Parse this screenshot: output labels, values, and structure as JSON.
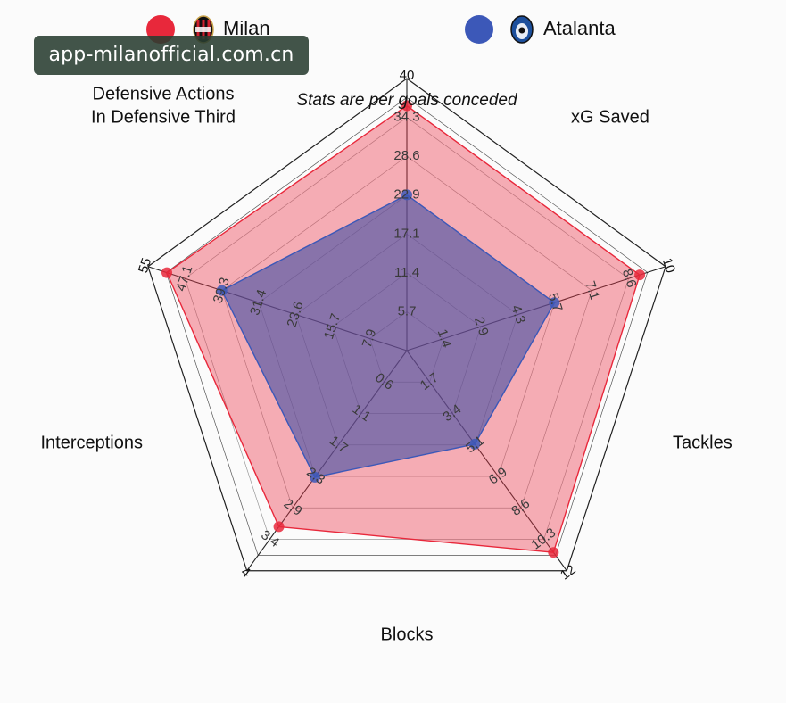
{
  "chart_data": {
    "type": "radar",
    "subtitle": "Stats are per goals conceded",
    "axes": [
      {
        "label": "Defensive Actions In Defensive Third",
        "label_lines": [
          "Defensive Actions",
          "In Defensive Third"
        ],
        "max": 40,
        "ticks": [
          "5.7",
          "11.4",
          "17.1",
          "22.9",
          "28.6",
          "34.3"
        ]
      },
      {
        "label": "xG Saved",
        "label_lines": [
          "xG Saved"
        ],
        "max": 10,
        "ticks": [
          "1.4",
          "2.9",
          "4.3",
          "5.7",
          "7.1",
          "8.6"
        ]
      },
      {
        "label": "Tackles",
        "label_lines": [
          "Tackles"
        ],
        "max": 12,
        "ticks": [
          "1.7",
          "3.4",
          "5.1",
          "6.9",
          "8.6",
          "10.3"
        ]
      },
      {
        "label": "Blocks",
        "label_lines": [
          "Blocks"
        ],
        "max": 4,
        "ticks": [
          "0.6",
          "1.1",
          "1.7",
          "2.3",
          "2.9",
          "3.4"
        ]
      },
      {
        "label": "Interceptions",
        "label_lines": [
          "Interceptions"
        ],
        "max": 55,
        "ticks": [
          "7.9",
          "15.7",
          "23.6",
          "31.4",
          "39.3",
          "47.1"
        ]
      }
    ],
    "series": [
      {
        "name": "Milan",
        "color": "#e8283b",
        "fill": "rgba(238,55,75,0.40)",
        "values": [
          36,
          9.0,
          11.0,
          3.2,
          51
        ]
      },
      {
        "name": "Atalanta",
        "color": "#3c58b8",
        "fill": "rgba(70,80,165,0.62)",
        "values": [
          22.9,
          5.7,
          5.1,
          2.3,
          39.3
        ]
      }
    ],
    "legend_position": "top"
  },
  "legend": {
    "milan_icon": "milan-crest-icon",
    "atalanta_icon": "atalanta-crest-icon"
  },
  "watermark": "app-milanofficial.com.cn"
}
